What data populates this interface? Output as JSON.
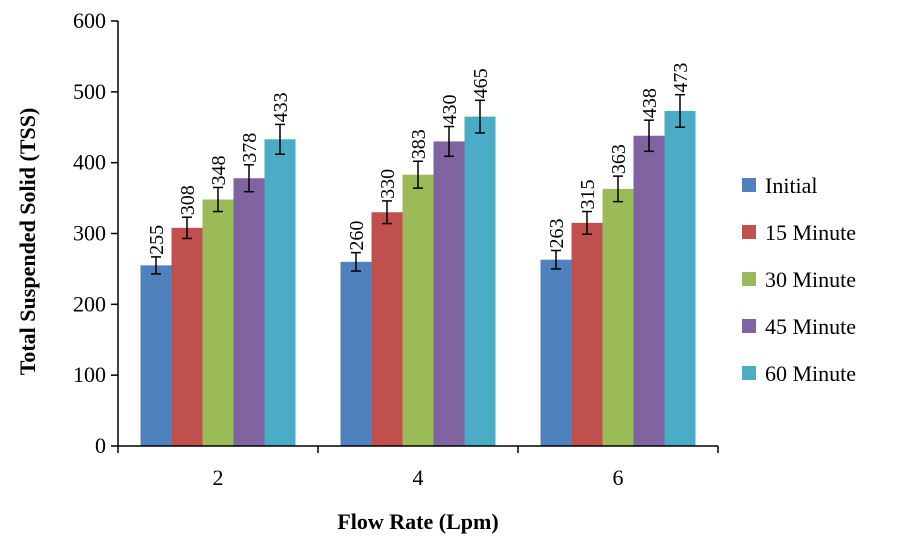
{
  "chart_data": {
    "type": "bar",
    "xlabel": "Flow Rate (Lpm)",
    "ylabel": "Total Suspended Solid (TSS)",
    "categories": [
      "2",
      "4",
      "6"
    ],
    "ylim": [
      0,
      600
    ],
    "yticks": [
      "0",
      "100",
      "200",
      "300",
      "400",
      "500",
      "600"
    ],
    "legend_position": "right",
    "grid": false,
    "error_bars": true,
    "series": [
      {
        "name": "Initial",
        "color": "#4F81BD",
        "values": [
          255,
          260,
          263
        ],
        "errors": [
          12,
          13,
          13
        ]
      },
      {
        "name": "15 Minute",
        "color": "#C0504D",
        "values": [
          308,
          330,
          315
        ],
        "errors": [
          15,
          16,
          16
        ]
      },
      {
        "name": "30 Minute",
        "color": "#9BBB59",
        "values": [
          348,
          383,
          363
        ],
        "errors": [
          17,
          19,
          18
        ]
      },
      {
        "name": "45 Minute",
        "color": "#8064A2",
        "values": [
          378,
          430,
          438
        ],
        "errors": [
          19,
          21,
          22
        ]
      },
      {
        "name": "60 Minute",
        "color": "#4BACC6",
        "values": [
          433,
          465,
          473
        ],
        "errors": [
          21,
          23,
          23
        ]
      }
    ]
  }
}
